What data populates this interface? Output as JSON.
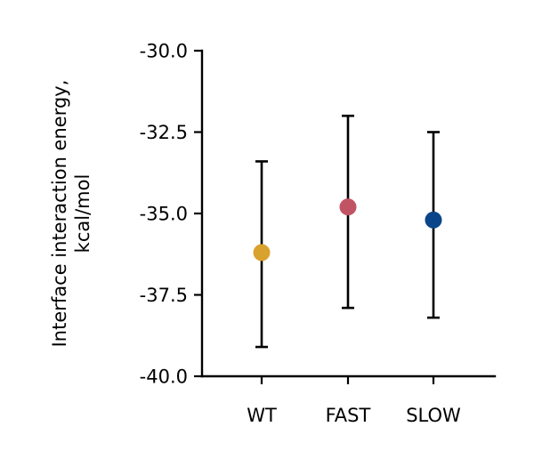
{
  "chart_data": {
    "type": "scatter",
    "title": "",
    "xlabel": "",
    "ylabel": "Interface interaction energy,",
    "ylabel_line2": "kcal/mol",
    "categories": [
      "WT",
      "FAST",
      "SLOW"
    ],
    "values": [
      -36.2,
      -34.8,
      -35.2
    ],
    "error_low": [
      -39.1,
      -37.9,
      -38.2
    ],
    "error_high": [
      -33.4,
      -32.0,
      -32.5
    ],
    "point_colors": [
      "#d9a22e",
      "#c15464",
      "#0b4589"
    ],
    "ylim": [
      -40.0,
      -30.0
    ],
    "yticks": [
      -30.0,
      -32.5,
      -35.0,
      -37.5,
      -40.0
    ],
    "ytick_labels": [
      "-30.0",
      "-32.5",
      "-35.0",
      "-37.5",
      "-40.0"
    ],
    "grid": false,
    "legend": "none"
  },
  "colors": {
    "axis": "#000000",
    "errorbar": "#000000"
  }
}
